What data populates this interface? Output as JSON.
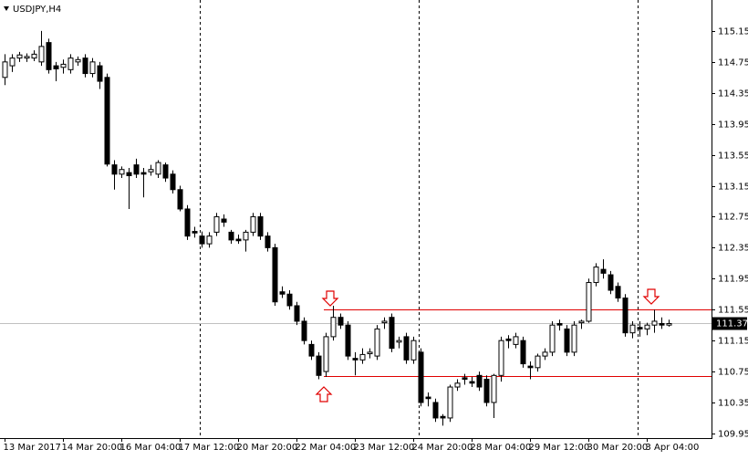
{
  "chart_data": {
    "type": "candlestick",
    "title": "USDJPY,H4",
    "categories": [
      "13 Mar 2017",
      null,
      null,
      null,
      null,
      null,
      null,
      null,
      "14 Mar 20:00",
      null,
      null,
      null,
      null,
      null,
      null,
      null,
      "16 Mar 04:00",
      null,
      null,
      null,
      null,
      null,
      null,
      null,
      "17 Mar 12:00",
      null,
      null,
      null,
      null,
      null,
      null,
      null,
      "20 Mar 20:00",
      null,
      null,
      null,
      null,
      null,
      null,
      null,
      "22 Mar 04:00",
      null,
      null,
      null,
      null,
      null,
      null,
      null,
      "23 Mar 12:00",
      null,
      null,
      null,
      null,
      null,
      null,
      null,
      "24 Mar 20:00",
      null,
      null,
      null,
      null,
      null,
      null,
      null,
      "28 Mar 04:00",
      null,
      null,
      null,
      null,
      null,
      null,
      null,
      "29 Mar 12:00",
      null,
      null,
      null,
      null,
      null,
      null,
      null,
      "30 Mar 20:00",
      null,
      null,
      null,
      null,
      null,
      null,
      null,
      "3 Apr 04:00",
      null,
      null,
      null
    ],
    "open": [
      114.55,
      114.7,
      114.8,
      114.8,
      114.8,
      114.75,
      115.0,
      114.7,
      114.68,
      114.65,
      114.75,
      114.8,
      114.6,
      114.7,
      114.55,
      113.42,
      113.3,
      113.32,
      113.42,
      113.32,
      113.33,
      113.3,
      113.42,
      113.3,
      113.1,
      112.85,
      112.56,
      112.5,
      112.4,
      112.55,
      112.72,
      112.55,
      112.46,
      112.45,
      112.55,
      112.75,
      112.5,
      112.35,
      111.78,
      111.75,
      111.6,
      111.4,
      111.1,
      110.95,
      110.75,
      111.2,
      111.45,
      111.35,
      110.92,
      110.9,
      110.98,
      110.95,
      111.38,
      111.45,
      111.13,
      111.2,
      110.9,
      111.0,
      110.42,
      110.35,
      110.17,
      110.15,
      110.55,
      110.67,
      110.62,
      110.7,
      110.65,
      110.35,
      110.7,
      111.17,
      111.1,
      111.15,
      110.82,
      110.8,
      110.95,
      111.0,
      111.37,
      111.3,
      111.0,
      111.38,
      111.4,
      111.9,
      112.07,
      112.0,
      111.85,
      111.7,
      111.25,
      111.32,
      111.3,
      111.35,
      111.37,
      111.35
    ],
    "high": [
      114.85,
      114.85,
      114.88,
      114.86,
      114.9,
      115.15,
      115.05,
      114.75,
      114.78,
      114.85,
      114.82,
      114.85,
      114.8,
      114.75,
      114.6,
      113.48,
      113.4,
      113.38,
      113.5,
      113.38,
      113.42,
      113.48,
      113.45,
      113.35,
      113.15,
      112.9,
      112.62,
      112.56,
      112.55,
      112.8,
      112.78,
      112.58,
      112.52,
      112.58,
      112.8,
      112.8,
      112.55,
      112.4,
      111.85,
      111.8,
      111.65,
      111.45,
      111.15,
      111.0,
      111.25,
      111.6,
      111.5,
      111.4,
      111.0,
      111.05,
      111.05,
      111.35,
      111.45,
      111.5,
      111.2,
      111.25,
      111.2,
      111.05,
      110.48,
      110.4,
      110.2,
      110.58,
      110.65,
      110.72,
      110.68,
      110.75,
      110.7,
      110.72,
      111.2,
      111.22,
      111.25,
      111.2,
      110.88,
      110.98,
      111.05,
      111.4,
      111.42,
      111.35,
      111.4,
      111.42,
      111.95,
      112.15,
      112.2,
      112.05,
      111.9,
      111.75,
      111.4,
      111.4,
      111.38,
      111.55,
      111.45,
      111.42
    ],
    "low": [
      114.45,
      114.62,
      114.75,
      114.75,
      114.76,
      114.7,
      114.6,
      114.5,
      114.6,
      114.6,
      114.7,
      114.55,
      114.55,
      114.4,
      113.4,
      113.1,
      113.25,
      112.85,
      113.25,
      113.0,
      113.28,
      113.25,
      113.2,
      113.05,
      112.82,
      112.45,
      112.48,
      112.35,
      112.35,
      112.5,
      112.62,
      112.4,
      112.4,
      112.3,
      112.5,
      112.45,
      112.3,
      111.6,
      111.7,
      111.55,
      111.35,
      111.1,
      110.9,
      110.65,
      110.68,
      111.15,
      111.3,
      110.9,
      110.7,
      110.85,
      110.92,
      110.9,
      111.3,
      111.0,
      111.05,
      110.85,
      110.85,
      110.3,
      110.3,
      110.1,
      110.05,
      110.1,
      110.5,
      110.58,
      110.55,
      110.5,
      110.3,
      110.15,
      110.62,
      111.05,
      111.05,
      110.8,
      110.65,
      110.75,
      110.9,
      110.95,
      111.28,
      110.95,
      110.95,
      111.3,
      111.38,
      111.85,
      111.95,
      111.75,
      111.65,
      111.2,
      111.18,
      111.2,
      111.22,
      111.25,
      111.3,
      111.33
    ],
    "close": [
      114.75,
      114.8,
      114.84,
      114.82,
      114.85,
      114.95,
      114.65,
      114.66,
      114.72,
      114.8,
      114.78,
      114.6,
      114.75,
      114.5,
      113.43,
      113.3,
      113.36,
      113.28,
      113.3,
      113.3,
      113.36,
      113.45,
      113.25,
      113.1,
      112.85,
      112.5,
      112.54,
      112.4,
      112.5,
      112.75,
      112.68,
      112.45,
      112.44,
      112.55,
      112.75,
      112.5,
      112.35,
      111.65,
      111.75,
      111.6,
      111.4,
      111.15,
      110.95,
      110.7,
      111.2,
      111.45,
      111.35,
      110.95,
      110.9,
      110.97,
      111.0,
      111.3,
      111.4,
      111.05,
      111.15,
      110.9,
      111.15,
      110.35,
      110.4,
      110.15,
      110.15,
      110.55,
      110.6,
      110.65,
      110.6,
      110.55,
      110.35,
      110.7,
      111.15,
      111.15,
      111.2,
      110.85,
      110.8,
      110.95,
      111.0,
      111.35,
      111.35,
      111.0,
      111.35,
      111.4,
      111.9,
      112.1,
      112.02,
      111.8,
      111.7,
      111.25,
      111.35,
      111.3,
      111.35,
      111.4,
      111.35,
      111.37
    ],
    "ylim": [
      109.89,
      115.55
    ],
    "yticks": [
      115.15,
      114.75,
      114.35,
      113.95,
      113.55,
      113.15,
      112.75,
      112.35,
      111.95,
      111.55,
      111.15,
      110.75,
      110.35,
      109.95
    ],
    "levels": [
      111.55,
      110.69
    ],
    "current_price": 111.37
  }
}
